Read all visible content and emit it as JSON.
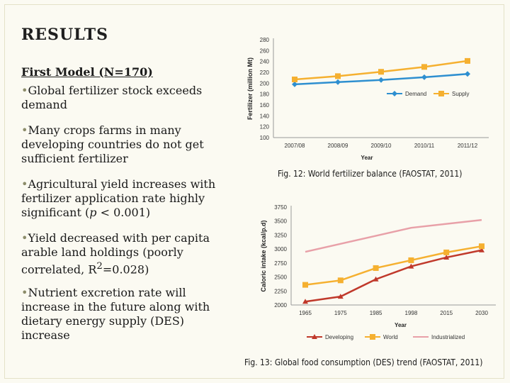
{
  "slide": {
    "title": "RESULTS",
    "subheading": "First Model  (N=170)",
    "bullets": [
      {
        "text": "Global fertilizer stock exceeds demand"
      },
      {
        "text": "Many crops farms in many developing countries do not get sufficient fertilizer"
      },
      {
        "text_before": "Agricultural yield increases with fertilizer application rate highly significant (",
        "italic": "p",
        "text_after": " < 0.001)"
      },
      {
        "text_before": "Yield decreased with per capita arable land holdings (poorly correlated, R",
        "sup": "2",
        "text_after": "=0.028)"
      },
      {
        "text": "Nutrient excretion rate will increase in the future along with dietary energy supply (DES) increase"
      }
    ],
    "bullet_symbol": "•"
  },
  "chart_data": [
    {
      "type": "line",
      "title": "",
      "caption": "Fig. 12: World fertilizer balance (FAOSTAT, 2011)",
      "xlabel": "Year",
      "ylabel": "Fertilizer (million Mt)",
      "categories": [
        "2007/08",
        "2008/09",
        "2009/10",
        "2010/11",
        "2011/12"
      ],
      "yticks": [
        100,
        120,
        140,
        160,
        180,
        200,
        220,
        240,
        260,
        280
      ],
      "ylim": [
        100,
        280
      ],
      "series": [
        {
          "name": "Demand",
          "values": [
            198,
            202,
            206,
            211,
            217
          ],
          "color": "#2e8fd0",
          "marker": "diamond"
        },
        {
          "name": "Supply",
          "values": [
            207,
            213,
            221,
            230,
            241
          ],
          "color": "#f5b030",
          "marker": "square"
        }
      ],
      "legend_position": "right"
    },
    {
      "type": "line",
      "title": "",
      "caption": "Fig. 13: Global food consumption (DES) trend (FAOSTAT, 2011)",
      "xlabel": "Year",
      "ylabel": "Caloric intake (kcal/p.d)",
      "categories": [
        "1965",
        "1975",
        "1985",
        "1998",
        "2015",
        "2030"
      ],
      "yticks": [
        2000,
        2250,
        2500,
        2750,
        3000,
        3250,
        3500,
        3750
      ],
      "ylim": [
        2000,
        3750
      ],
      "series": [
        {
          "name": "Developing",
          "values": [
            2060,
            2150,
            2460,
            2690,
            2850,
            2980
          ],
          "color": "#c0392b",
          "marker": "triangle"
        },
        {
          "name": "World",
          "values": [
            2360,
            2440,
            2660,
            2800,
            2940,
            3050
          ],
          "color": "#f5b030",
          "marker": "square"
        },
        {
          "name": "Industrialized",
          "values": [
            2950,
            null,
            null,
            3380,
            null,
            3520
          ],
          "color": "#e8a0a8",
          "marker": "none"
        }
      ],
      "legend_position": "bottom"
    }
  ]
}
